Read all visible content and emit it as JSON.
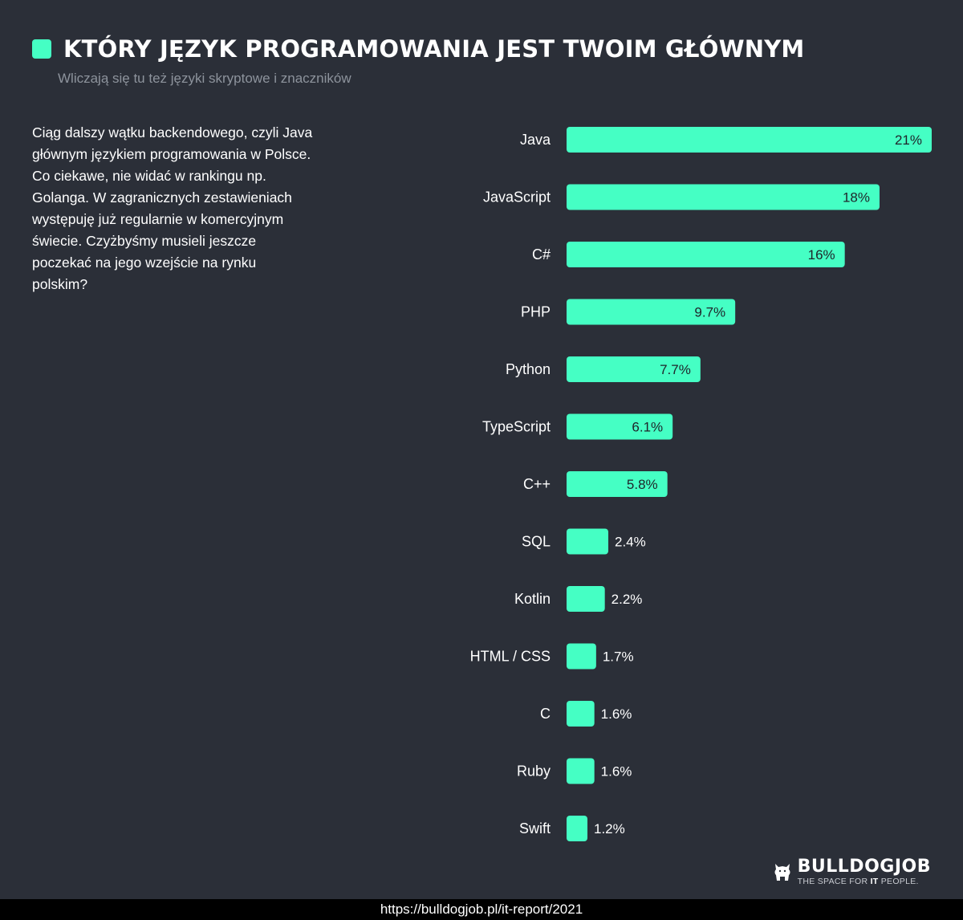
{
  "header": {
    "title": "KTÓRY JĘZYK PROGRAMOWANIA JEST TWOIM GŁÓWNYM",
    "subtitle": "Wliczają się tu też języki skryptowe i znaczników",
    "accent_color": "#45ffc4"
  },
  "description": "Ciąg dalszy wątku backendowego, czyli Java głównym językiem programowania w Polsce. Co ciekawe, nie widać w rankingu np. Golanga. W zagranicznych zestawieniach występuję już regularnie w komercyjnym świecie. Czyżbyśmy musieli jeszcze poczekać na jego wzejście na rynku polskim?",
  "chart_data": {
    "type": "bar",
    "orientation": "horizontal",
    "categories": [
      "Java",
      "JavaScript",
      "C#",
      "PHP",
      "Python",
      "TypeScript",
      "C++",
      "SQL",
      "Kotlin",
      "HTML / CSS",
      "C",
      "Ruby",
      "Swift"
    ],
    "values": [
      21,
      18,
      16,
      9.7,
      7.7,
      6.1,
      5.8,
      2.4,
      2.2,
      1.7,
      1.6,
      1.6,
      1.2
    ],
    "value_labels": [
      "21%",
      "18%",
      "16%",
      "9.7%",
      "7.7%",
      "6.1%",
      "5.8%",
      "2.4%",
      "2.2%",
      "1.7%",
      "1.6%",
      "1.6%",
      "1.2%"
    ],
    "unit": "%",
    "bar_color": "#45ffc4",
    "grid": false
  },
  "logo": {
    "icon": "bulldog-icon",
    "name": "BULLDOGJOB",
    "tagline_pre": "THE SPACE FOR ",
    "tagline_bold": "IT",
    "tagline_post": " PEOPLE."
  },
  "footer": {
    "url": "https://bulldogjob.pl/it-report/2021"
  }
}
